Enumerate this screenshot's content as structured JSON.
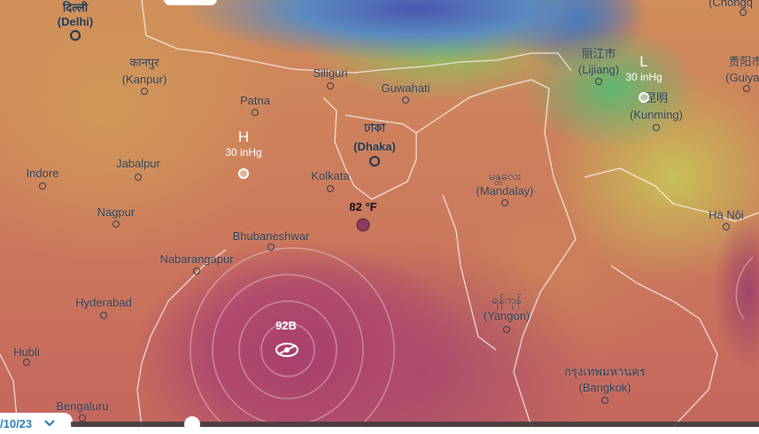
{
  "map": {
    "cities": [
      {
        "id": "delhi",
        "native": "दिल्ली",
        "name": "(Delhi)",
        "major": true
      },
      {
        "id": "kanpur",
        "native": "कानपुर",
        "name": "(Kanpur)"
      },
      {
        "id": "patna",
        "name": "Patna"
      },
      {
        "id": "siliguri",
        "name": "Siliguri"
      },
      {
        "id": "guwahati",
        "name": "Guwahati"
      },
      {
        "id": "dhaka",
        "native": "ঢাকা",
        "name": "(Dhaka)",
        "major": true
      },
      {
        "id": "indore",
        "name": "Indore"
      },
      {
        "id": "jabalpur",
        "name": "Jabalpur"
      },
      {
        "id": "kolkata",
        "name": "Kolkata"
      },
      {
        "id": "nagpur",
        "name": "Nagpur"
      },
      {
        "id": "bhubaneshwar",
        "name": "Bhubaneshwar"
      },
      {
        "id": "nabarangapur",
        "name": "Nabarangapur"
      },
      {
        "id": "hyderabad",
        "name": "Hyderabad"
      },
      {
        "id": "hubli",
        "name": "Hubli"
      },
      {
        "id": "bengaluru",
        "name": "Bengaluru"
      },
      {
        "id": "mandalay",
        "native": "မန္တလေး",
        "name": "(Mandalay)"
      },
      {
        "id": "yangon",
        "native": "ရန်ကုန်",
        "name": "(Yangon)"
      },
      {
        "id": "bangkok",
        "native": "กรุงเทพมหานคร",
        "name": "(Bangkok)"
      },
      {
        "id": "hanoi",
        "name": "Hà Nội"
      },
      {
        "id": "lijiang",
        "native": "丽江市",
        "name": "(Lijiang)"
      },
      {
        "id": "kunming",
        "native": "昆明",
        "name": "(Kunming)"
      },
      {
        "id": "guiyang",
        "native": "贵阳市",
        "name": "(Guiyan"
      },
      {
        "id": "chongqing",
        "name": "(Chongq"
      }
    ],
    "pressure": {
      "high": {
        "letter": "H",
        "value": "30 inHg"
      },
      "low": {
        "letter": "L",
        "value": "30 inHg"
      }
    },
    "temperature_marker": "82 °F",
    "storm": {
      "label": "92B",
      "icon": "hurricane-icon"
    }
  },
  "controls": {
    "date": "/10/23",
    "date_icon": "chevron-down-icon",
    "timeline_progress": 0.17
  },
  "colors": {
    "hot": "#b04a6c",
    "warm": "#d08c5a",
    "mild": "#c8c058",
    "cool": "#5fb870",
    "cold": "#4a56b0"
  }
}
